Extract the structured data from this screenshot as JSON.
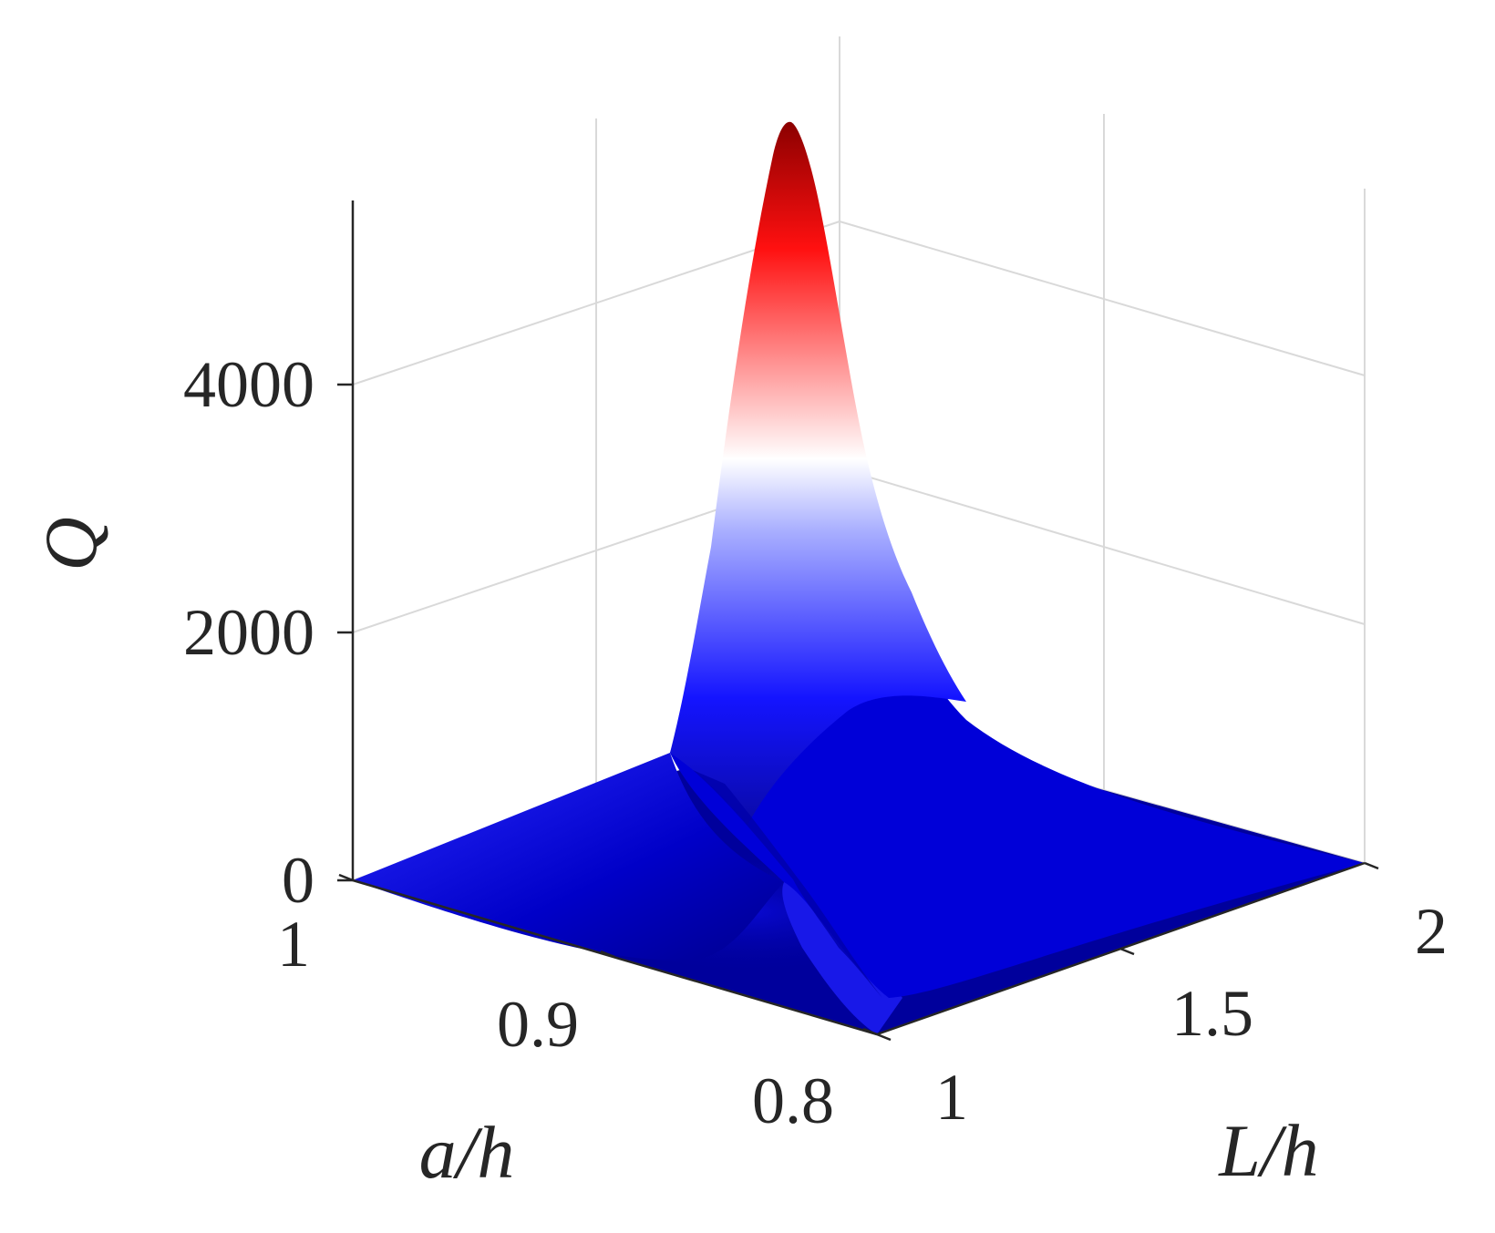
{
  "chart_data": {
    "type": "surface",
    "title": "",
    "xlabel": "L/h",
    "ylabel": "a/h",
    "zlabel": "Q",
    "x_ticks": [
      "1",
      "1.5",
      "2"
    ],
    "y_ticks": [
      "1",
      "0.9",
      "0.8"
    ],
    "z_ticks": [
      "0",
      "2000",
      "4000"
    ],
    "xlim": [
      1,
      2
    ],
    "ylim": [
      0.8,
      1
    ],
    "zlim": [
      0,
      5500
    ],
    "grid": true,
    "colormap": [
      "#00008b",
      "#0000ff",
      "#ffffff",
      "#ff0000",
      "#8b0000"
    ],
    "peak": {
      "L_over_h": 1.14,
      "a_over_h": 0.98,
      "Q": 5900
    },
    "ridge": [
      {
        "a_over_h": 1.0,
        "L_over_h": 1.15,
        "Q": 5900
      },
      {
        "a_over_h": 0.96,
        "L_over_h": 1.18,
        "Q": 4200
      },
      {
        "a_over_h": 0.92,
        "L_over_h": 1.22,
        "Q": 1900
      },
      {
        "a_over_h": 0.88,
        "L_over_h": 1.26,
        "Q": 800
      },
      {
        "a_over_h": 0.84,
        "L_over_h": 1.3,
        "Q": 250
      },
      {
        "a_over_h": 0.8,
        "L_over_h": 1.34,
        "Q": 60
      }
    ],
    "baseline_Q": 0
  }
}
